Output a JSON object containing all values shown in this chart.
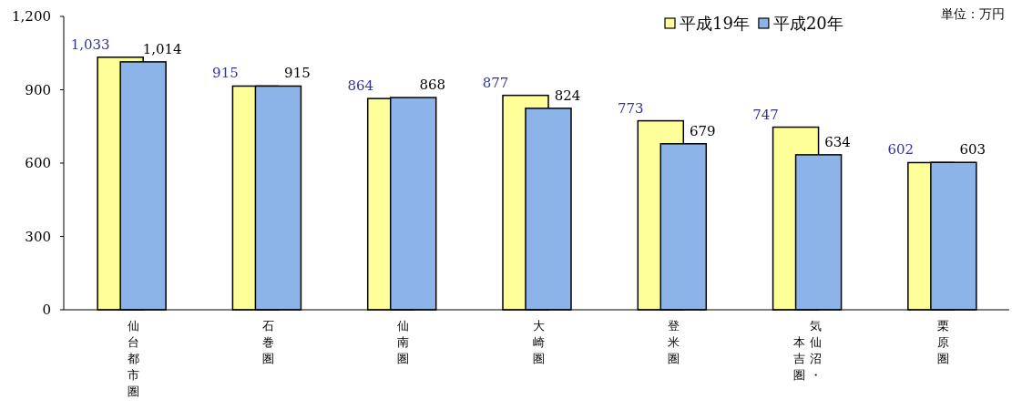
{
  "chart_data": {
    "type": "bar",
    "categories": [
      "仙台都市圏",
      "石巻圏",
      "仙南圏",
      "大崎圏",
      "登米圏",
      "気仙沼・本吉圏",
      "栗原圏"
    ],
    "series": [
      {
        "name": "平成19年",
        "color": "#ffff99",
        "values": [
          1033,
          915,
          864,
          877,
          773,
          747,
          602
        ],
        "value_labels": [
          "1,033",
          "915",
          "864",
          "877",
          "773",
          "747",
          "602"
        ]
      },
      {
        "name": "平成20年",
        "color": "#8db4e8",
        "values": [
          1014,
          915,
          868,
          824,
          679,
          634,
          603
        ],
        "value_labels": [
          "1,014",
          "915",
          "868",
          "824",
          "679",
          "634",
          "603"
        ]
      }
    ],
    "ylim": [
      0,
      1200
    ],
    "yticks": [
      0,
      300,
      600,
      900,
      {
        "value": 1200,
        "label": "1,200"
      }
    ],
    "legend": "top right",
    "grid": false,
    "annotations": [
      "単位：万円"
    ]
  }
}
